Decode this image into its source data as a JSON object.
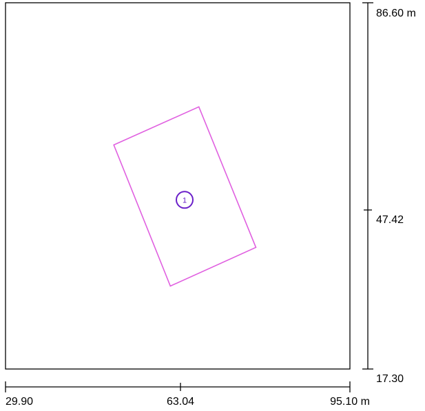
{
  "plan": {
    "x_axis": {
      "ticks": [
        "29.90",
        "63.04",
        "95.10 m"
      ],
      "range": [
        29.9,
        95.1
      ],
      "mid": 63.04
    },
    "y_axis": {
      "ticks": [
        "86.60 m",
        "47.42",
        "17.30"
      ],
      "range": [
        17.3,
        86.6
      ],
      "mid": 47.42
    },
    "shape": {
      "color": "#e060e0",
      "marker_color": "#6a1fc9",
      "marker_label": "1",
      "vertices": [
        [
          50.4,
          59.7
        ],
        [
          66.5,
          66.9
        ],
        [
          77.3,
          40.3
        ],
        [
          61.1,
          33.0
        ]
      ],
      "marker_position": [
        63.8,
        49.3
      ]
    }
  }
}
